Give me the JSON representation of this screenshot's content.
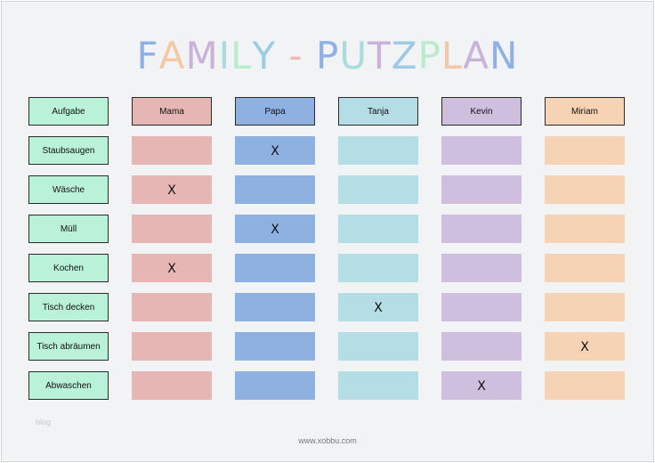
{
  "title": {
    "letters": [
      "F",
      "A",
      "M",
      "I",
      "L",
      "Y",
      " ",
      "-",
      " ",
      "P",
      "U",
      "T",
      "Z",
      "P",
      "L",
      "A",
      "N"
    ],
    "letter_colors": [
      "#8fb0e6",
      "#f2c9a4",
      "#c9b2d9",
      "#a8dcdd",
      "#b9eccf",
      "#9ccbe6",
      "#ffffff",
      "#f0b8b5",
      "#ffffff",
      "#8fb0e6",
      "#a8dcdd",
      "#c9b2d9",
      "#9ccbe6",
      "#b9eccf",
      "#f2c9a4",
      "#c9b2d9",
      "#8fb0e6"
    ]
  },
  "header_label": "Aufgabe",
  "persons": [
    {
      "name": "Mama",
      "header_color": "#e6b6b5",
      "cell_color": "#e6b6b5"
    },
    {
      "name": "Papa",
      "header_color": "#8eb1e2",
      "cell_color": "#8eb1e2"
    },
    {
      "name": "Tanja",
      "header_color": "#b5dde5",
      "cell_color": "#b5dde5"
    },
    {
      "name": "Kevin",
      "header_color": "#cdbfdd",
      "cell_color": "#cdbfdd"
    },
    {
      "name": "Miriam",
      "header_color": "#f6d3b5",
      "cell_color": "#f6d3b5"
    }
  ],
  "tasks": [
    {
      "label": "Staubsaugen",
      "marks": [
        "",
        "X",
        "",
        "",
        ""
      ]
    },
    {
      "label": "Wäsche",
      "marks": [
        "X",
        "",
        "",
        "",
        ""
      ]
    },
    {
      "label": "Müll",
      "marks": [
        "",
        "X",
        "",
        "",
        ""
      ]
    },
    {
      "label": "Kochen",
      "marks": [
        "X",
        "",
        "",
        "",
        ""
      ]
    },
    {
      "label": "Tisch decken",
      "marks": [
        "",
        "",
        "X",
        "",
        ""
      ]
    },
    {
      "label": "Tisch abräumen",
      "marks": [
        "",
        "",
        "",
        "",
        "X"
      ]
    },
    {
      "label": "Abwaschen",
      "marks": [
        "",
        "",
        "",
        "X",
        ""
      ]
    }
  ],
  "watermark": "blog",
  "footer": "www.xobbu.com"
}
